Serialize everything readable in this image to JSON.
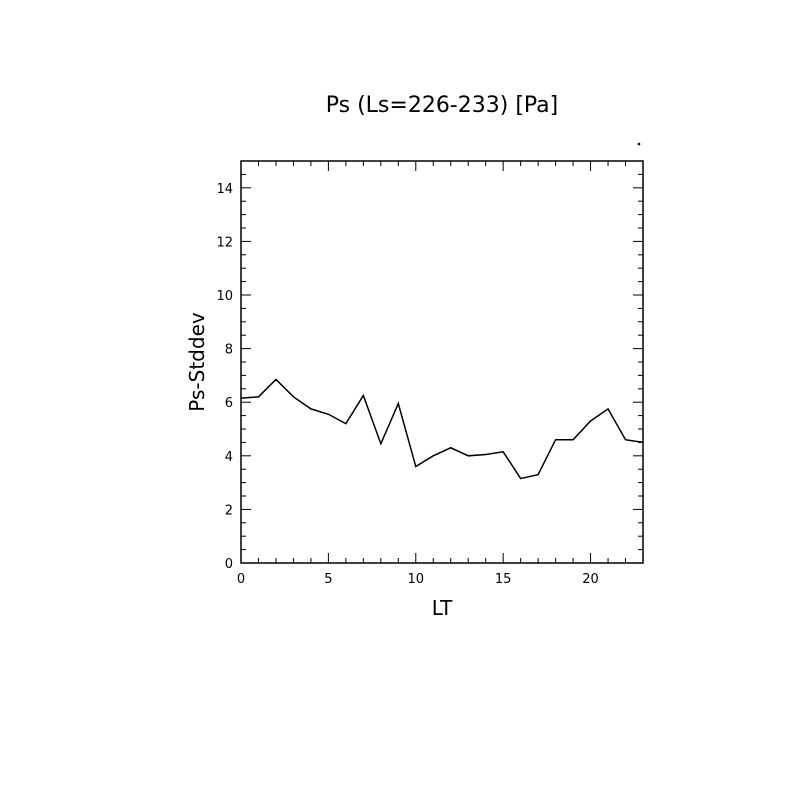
{
  "chart_data": {
    "type": "line",
    "title": "Ps (Ls=226-233) [Pa]",
    "xlabel": "LT",
    "ylabel": "Ps-Stddev",
    "xlim": [
      0,
      23
    ],
    "ylim": [
      0,
      15
    ],
    "x_ticks": [
      0,
      5,
      10,
      15,
      20
    ],
    "y_ticks": [
      0,
      2,
      4,
      6,
      8,
      10,
      12,
      14
    ],
    "grid": false,
    "series": [
      {
        "x": [
          0,
          1,
          2,
          3,
          4,
          5,
          6,
          7,
          8,
          9,
          10,
          11,
          12,
          13,
          14,
          15,
          16,
          17,
          18,
          19,
          20,
          21,
          22,
          23
        ],
        "values": [
          6.15,
          6.2,
          6.85,
          6.2,
          5.75,
          5.55,
          5.2,
          6.25,
          4.45,
          5.95,
          3.6,
          4.0,
          4.3,
          4.0,
          4.05,
          4.15,
          3.15,
          3.3,
          4.6,
          4.6,
          5.3,
          5.75,
          4.6,
          4.5
        ]
      }
    ],
    "color": "#000000"
  }
}
